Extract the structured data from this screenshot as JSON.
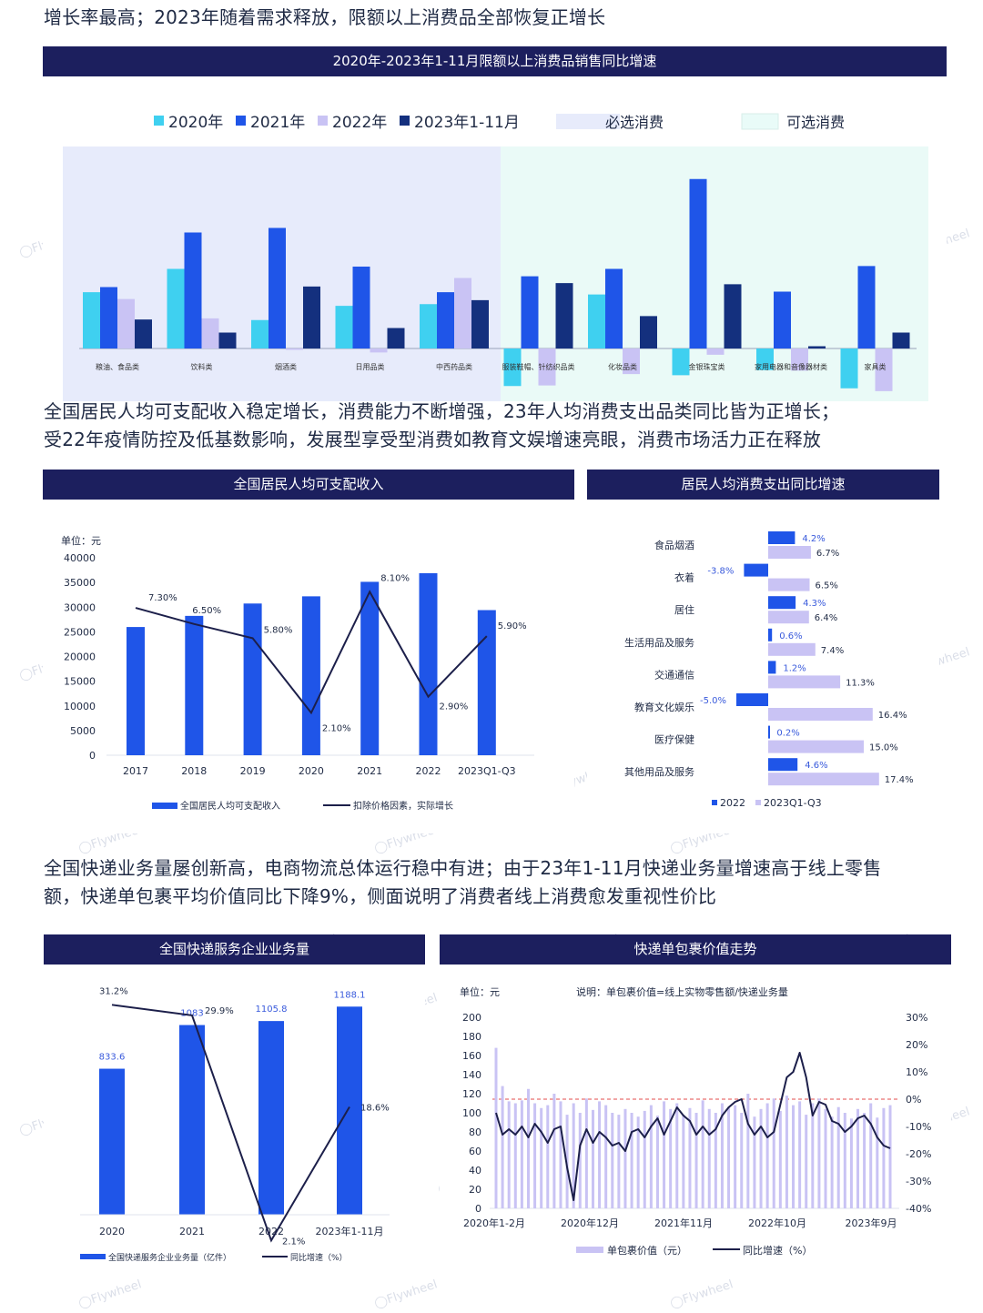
{
  "headings": {
    "h1": "增长率最高；2023年随着需求释放，限额以上消费品全部恢复正增长",
    "h2_line1": "全国居民人均可支配收入稳定增长，消费能力不断增强，23年人均消费支出品类同比皆为正增长；",
    "h2_line2": "受22年疫情防控及低基数影响，发展型享受型消费如教育文娱增速亮眼，消费市场活力正在释放",
    "h3_line1": "全国快递业务量屡创新高，电商物流总体运行稳中有进；由于23年1-11月快递业务量增速高于线上零售",
    "h3_line2": "额，快递单包裹平均价值同比下降9%，侧面说明了消费者线上消费愈发重视性价比"
  },
  "watermark": "Flywheel",
  "colors": {
    "c2020": "#3fd0f0",
    "c2021": "#1f55e8",
    "c2022": "#c9c3f4",
    "c2023": "#14307e",
    "line": "#1c1f4a",
    "title_bar": "#1c1f5e"
  },
  "chart_data": [
    {
      "id": "retail",
      "type": "bar",
      "title": "2020年-2023年1-11月限额以上消费品销售同比增速",
      "legend": [
        "2020年",
        "2021年",
        "2022年",
        "2023年1-11月"
      ],
      "zone_legend": [
        "必选消费",
        "可选消费"
      ],
      "categories": [
        "粮油、食品类",
        "饮料类",
        "烟酒类",
        "日用品类",
        "中西药品类",
        "服装鞋帽、针纺织品类",
        "化妆品类",
        "金银珠宝类",
        "家用电器和音像器材类",
        "家具类"
      ],
      "series": [
        {
          "name": "2020年",
          "values": [
            9.9,
            14.0,
            5.0,
            7.5,
            7.8,
            -6.6,
            9.5,
            -4.7,
            -3.8,
            -7.0
          ]
        },
        {
          "name": "2021年",
          "values": [
            10.8,
            20.4,
            21.2,
            14.4,
            9.9,
            12.7,
            14.0,
            29.8,
            10.0,
            14.5
          ]
        },
        {
          "name": "2022年",
          "values": [
            8.7,
            5.3,
            -0.2,
            -0.7,
            12.4,
            -6.5,
            -4.5,
            -1.1,
            -3.9,
            -7.5
          ]
        },
        {
          "name": "2023年1-11月",
          "values": [
            5.1,
            2.8,
            10.9,
            3.6,
            8.5,
            11.5,
            5.7,
            11.3,
            0.4,
            2.8
          ]
        }
      ],
      "ylim": [
        -8,
        31
      ]
    },
    {
      "id": "income",
      "type": "bar",
      "title": "全国居民人均可支配收入",
      "unit": "单位：元",
      "categories": [
        "2017",
        "2018",
        "2019",
        "2020",
        "2021",
        "2022",
        "2023Q1-Q3"
      ],
      "y_ticks": [
        "0",
        "5000",
        "10000",
        "15000",
        "20000",
        "25000",
        "30000",
        "35000",
        "40000"
      ],
      "ylim": [
        0,
        40000
      ],
      "bars": [
        25974,
        28228,
        30733,
        32189,
        35128,
        36883,
        29398
      ],
      "growth": [
        7.3,
        6.5,
        5.8,
        2.1,
        8.1,
        2.9,
        5.9
      ],
      "growth_labels": [
        "7.30%",
        "6.50%",
        "5.80%",
        "2.10%",
        "8.10%",
        "2.90%",
        "5.90%"
      ],
      "growth_ylim": [
        0,
        11
      ],
      "legend": [
        "全国居民人均可支配收入",
        "扣除价格因素，实际增长"
      ]
    },
    {
      "id": "spending",
      "type": "bar",
      "title": "居民人均消费支出同比增速",
      "categories": [
        "食品烟酒",
        "衣着",
        "居住",
        "生活用品及服务",
        "交通通信",
        "教育文化娱乐",
        "医疗保健",
        "其他用品及服务"
      ],
      "series": [
        {
          "name": "2022",
          "values": [
            4.2,
            -3.8,
            4.3,
            0.6,
            1.2,
            -5.0,
            0.2,
            4.6
          ],
          "labels": [
            "4.2%",
            "-3.8%",
            "4.3%",
            "0.6%",
            "1.2%",
            "-5.0%",
            "0.2%",
            "4.6%"
          ]
        },
        {
          "name": "2023Q1-Q3",
          "values": [
            6.7,
            6.5,
            6.4,
            7.4,
            11.3,
            16.4,
            15.0,
            17.4
          ],
          "labels": [
            "6.7%",
            "6.5%",
            "6.4%",
            "7.4%",
            "11.3%",
            "16.4%",
            "15.0%",
            "17.4%"
          ]
        }
      ]
    },
    {
      "id": "express",
      "type": "bar",
      "title": "全国快递服务企业业务量",
      "categories": [
        "2020",
        "2021",
        "2022",
        "2023年1-11月"
      ],
      "bars": [
        833.6,
        1083,
        1105.8,
        1188.1
      ],
      "bar_labels": [
        "833.6",
        "1083",
        "1105.8",
        "1188.1"
      ],
      "growth": [
        31.2,
        29.9,
        2.1,
        18.6
      ],
      "growth_labels": [
        "31.2%",
        "29.9%",
        "2.1%",
        "18.6%"
      ],
      "legend": [
        "全国快递服务企业业务量（亿件）",
        "同比增速（%）"
      ]
    },
    {
      "id": "parcel",
      "type": "bar",
      "title": "快递单包裹价值走势",
      "unit": "单位：元",
      "note": "说明：单包裹价值=线上实物零售额/快递业务量",
      "x_ticks": [
        "2020年1-2月",
        "2020年12月",
        "2021年11月",
        "2022年10月",
        "2023年9月"
      ],
      "y_left_ticks": [
        "0",
        "20",
        "40",
        "60",
        "80",
        "100",
        "120",
        "140",
        "160",
        "180",
        "200"
      ],
      "y_right_ticks": [
        "30%",
        "20%",
        "10%",
        "0%",
        "-10%",
        "-20%",
        "-30%",
        "-40%"
      ],
      "ylim_left": [
        0,
        200
      ],
      "ylim_right": [
        -40,
        30
      ],
      "bars": [
        168,
        128,
        112,
        110,
        113,
        125,
        110,
        105,
        108,
        120,
        112,
        98,
        110,
        100,
        115,
        103,
        112,
        108,
        100,
        98,
        104,
        100,
        96,
        102,
        108,
        97,
        112,
        104,
        110,
        98,
        105,
        100,
        113,
        104,
        100,
        110,
        106,
        108,
        100,
        120,
        96,
        104,
        110,
        115,
        102,
        118,
        108,
        112,
        98,
        110,
        115,
        104,
        96,
        106,
        100,
        94,
        104,
        100,
        110,
        95,
        105,
        108
      ],
      "growth": [
        -5,
        -13,
        -11,
        -13,
        -10,
        -14,
        -9,
        -12,
        -16,
        -11,
        -10,
        -25,
        -37,
        -17,
        -11,
        -16,
        -12,
        -14,
        -17,
        -16,
        -19,
        -12,
        -11,
        -14,
        -10,
        -7,
        -13,
        -8,
        -3,
        -6,
        -8,
        -13,
        -10,
        -13,
        -11,
        -6,
        -3,
        -1,
        0,
        -9,
        -13,
        -10,
        -14,
        -12,
        -2,
        8,
        10,
        17,
        8,
        -6,
        -1,
        -2,
        -8,
        -9,
        -12,
        -10,
        -7,
        -6,
        -9,
        -14,
        -17,
        -18
      ],
      "legend": [
        "单包裹价值（元）",
        "同比增速（%）"
      ]
    }
  ]
}
